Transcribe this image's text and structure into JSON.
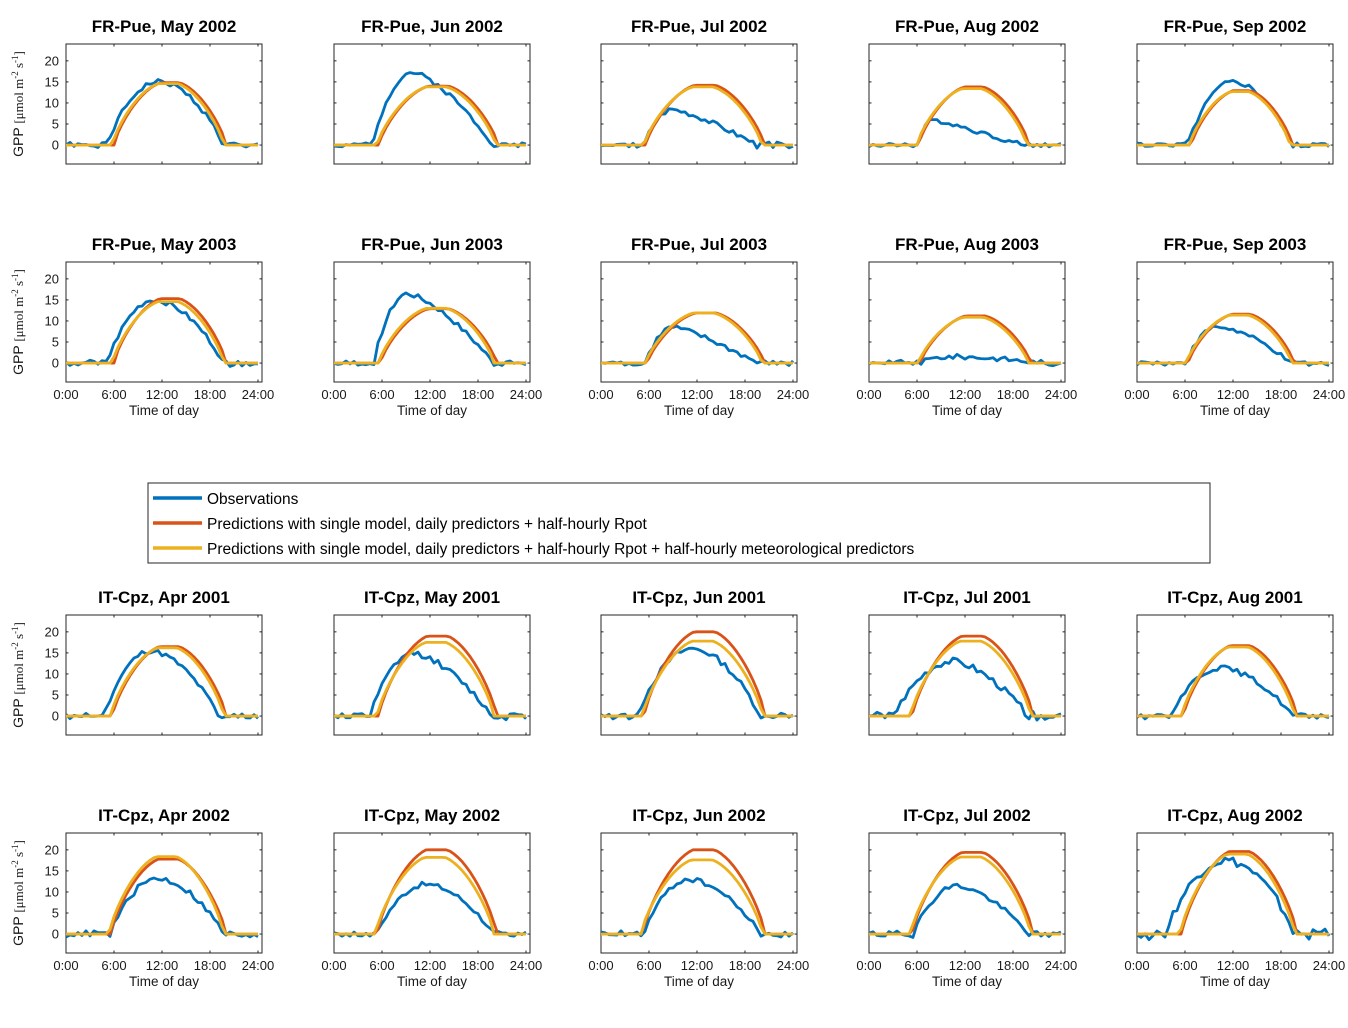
{
  "chart_data": {
    "type": "line",
    "x_ticks": [
      "0:00",
      "6:00",
      "12:00",
      "18:00",
      "24:00"
    ],
    "xlabel": "Time of day",
    "ylabel": "GPP [μmol m⁻² s⁻¹]",
    "ylabel_parts": {
      "main": "GPP ",
      "unit_start": "[μmol m",
      "exp1": "-2",
      "mid": " s",
      "exp2": "-1",
      "end": "]"
    },
    "y_ticks": [
      0,
      5,
      10,
      15,
      20
    ],
    "ylim": [
      -4.5,
      24
    ],
    "xlim": [
      0,
      24.5
    ],
    "colors": {
      "obs": "#0072BD",
      "pred1": "#D95319",
      "pred2": "#EDB120"
    },
    "legend": [
      {
        "key": "obs",
        "label": "Observations"
      },
      {
        "key": "pred1",
        "label": "Predictions with single model, daily predictors + half-hourly Rpot"
      },
      {
        "key": "pred2",
        "label": "Predictions with single model, daily predictors + half-hourly Rpot + half-hourly meteorological predictors"
      }
    ],
    "panels": [
      {
        "title": "FR-Pue, May 2002",
        "rise": 6.0,
        "set": 20.0,
        "pred1": 14.8,
        "pred2": 14.6,
        "obs": {
          "r": 5.2,
          "s": 19.6,
          "p": 15.0,
          "pk": 11.5,
          "asym": 0.0,
          "nz": 0.3,
          "amp": 0.6,
          "seed": 1
        }
      },
      {
        "title": "FR-Pue, Jun 2002",
        "rise": 5.6,
        "set": 20.5,
        "pred1": 14.0,
        "pred2": 13.8,
        "obs": {
          "r": 4.8,
          "s": 19.8,
          "p": 17.3,
          "pk": 9.8,
          "asym": 0.35,
          "nz": 0.3,
          "amp": 0.6,
          "seed": 2
        }
      },
      {
        "title": "FR-Pue, Jul 2002",
        "rise": 5.6,
        "set": 20.4,
        "pred1": 14.2,
        "pred2": 13.8,
        "obs": {
          "r": 5.4,
          "s": 19.5,
          "p": 8.5,
          "pk": 9.0,
          "asym": 0.5,
          "nz": 0.4,
          "amp": 0.6,
          "seed": 3
        }
      },
      {
        "title": "FR-Pue, Aug 2002",
        "rise": 6.2,
        "set": 20.0,
        "pred1": 13.8,
        "pred2": 13.4,
        "obs": {
          "r": 6.2,
          "s": 19.4,
          "p": 6.0,
          "pk": 8.0,
          "asym": 0.6,
          "nz": 0.3,
          "amp": 0.5,
          "seed": 4
        }
      },
      {
        "title": "FR-Pue, Sep 2002",
        "rise": 6.8,
        "set": 19.4,
        "pred1": 12.9,
        "pred2": 12.7,
        "obs": {
          "r": 6.4,
          "s": 19.2,
          "p": 15.0,
          "pk": 12.0,
          "asym": 0.0,
          "nz": 0.3,
          "amp": 0.6,
          "seed": 5
        }
      },
      {
        "title": "FR-Pue, May 2003",
        "rise": 6.0,
        "set": 20.0,
        "pred1": 15.3,
        "pred2": 14.6,
        "obs": {
          "r": 5.2,
          "s": 19.6,
          "p": 15.0,
          "pk": 11.0,
          "asym": 0.1,
          "nz": 0.4,
          "amp": 0.6,
          "seed": 6
        }
      },
      {
        "title": "FR-Pue, Jun 2003",
        "rise": 5.8,
        "set": 20.3,
        "pred1": 12.9,
        "pred2": 13.0,
        "obs": {
          "r": 5.0,
          "s": 19.8,
          "p": 16.5,
          "pk": 9.2,
          "asym": 0.35,
          "nz": 0.4,
          "amp": 0.6,
          "seed": 7
        }
      },
      {
        "title": "FR-Pue, Jul 2003",
        "rise": 5.8,
        "set": 20.4,
        "pred1": 11.9,
        "pred2": 11.9,
        "obs": {
          "r": 5.6,
          "s": 19.5,
          "p": 8.5,
          "pk": 9.0,
          "asym": 0.5,
          "nz": 0.4,
          "amp": 0.6,
          "seed": 8
        }
      },
      {
        "title": "FR-Pue, Aug 2003",
        "rise": 6.4,
        "set": 20.2,
        "pred1": 11.2,
        "pred2": 10.9,
        "obs": {
          "r": 6.5,
          "s": 21.0,
          "p": 1.5,
          "pk": 10.0,
          "asym": 0.0,
          "nz": 0.5,
          "amp": 0.6,
          "seed": 9
        }
      },
      {
        "title": "FR-Pue, Sep 2003",
        "rise": 6.4,
        "set": 19.6,
        "pred1": 11.6,
        "pred2": 11.4,
        "obs": {
          "r": 6.2,
          "s": 19.0,
          "p": 8.6,
          "pk": 10.0,
          "asym": 0.2,
          "nz": 0.3,
          "amp": 0.5,
          "seed": 10
        }
      },
      {
        "title": "IT-Cpz, Apr 2001",
        "rise": 5.8,
        "set": 20.0,
        "pred1": 16.5,
        "pred2": 16.2,
        "obs": {
          "r": 4.8,
          "s": 19.0,
          "p": 15.5,
          "pk": 10.6,
          "asym": 0.15,
          "nz": 0.5,
          "amp": 0.6,
          "seed": 11
        }
      },
      {
        "title": "IT-Cpz, May 2001",
        "rise": 5.6,
        "set": 20.3,
        "pred1": 19.0,
        "pred2": 17.5,
        "obs": {
          "r": 4.6,
          "s": 19.6,
          "p": 15.0,
          "pk": 10.0,
          "asym": 0.3,
          "nz": 0.5,
          "amp": 0.7,
          "seed": 12
        }
      },
      {
        "title": "IT-Cpz, Jun 2001",
        "rise": 5.4,
        "set": 20.5,
        "pred1": 20.0,
        "pred2": 17.8,
        "obs": {
          "r": 4.6,
          "s": 19.8,
          "p": 16.0,
          "pk": 11.5,
          "asym": 0.1,
          "nz": 0.5,
          "amp": 0.7,
          "seed": 13
        }
      },
      {
        "title": "IT-Cpz, Jul 2001",
        "rise": 5.4,
        "set": 20.5,
        "pred1": 19.0,
        "pred2": 17.8,
        "obs": {
          "r": 3.2,
          "s": 19.8,
          "p": 13.0,
          "pk": 10.5,
          "asym": 0.3,
          "nz": 0.6,
          "amp": 0.8,
          "seed": 14
        }
      },
      {
        "title": "IT-Cpz, Aug 2001",
        "rise": 5.8,
        "set": 20.0,
        "pred1": 16.7,
        "pred2": 16.4,
        "obs": {
          "r": 4.2,
          "s": 19.4,
          "p": 11.5,
          "pk": 10.5,
          "asym": 0.2,
          "nz": 0.5,
          "amp": 0.6,
          "seed": 15
        }
      },
      {
        "title": "IT-Cpz, Apr 2002",
        "rise": 5.6,
        "set": 20.0,
        "pred1": 17.8,
        "pred2": 18.4,
        "obs": {
          "r": 5.6,
          "s": 19.6,
          "p": 13.2,
          "pk": 11.5,
          "asym": 0.1,
          "nz": 0.5,
          "amp": 0.7,
          "seed": 16
        }
      },
      {
        "title": "IT-Cpz, May 2002",
        "rise": 5.4,
        "set": 20.3,
        "pred1": 20.0,
        "pred2": 18.2,
        "obs": {
          "r": 5.4,
          "s": 19.8,
          "p": 11.8,
          "pk": 11.5,
          "asym": 0.1,
          "nz": 0.5,
          "amp": 0.6,
          "seed": 17
        }
      },
      {
        "title": "IT-Cpz, Jun 2002",
        "rise": 5.2,
        "set": 20.5,
        "pred1": 20.0,
        "pred2": 17.6,
        "obs": {
          "r": 5.4,
          "s": 19.8,
          "p": 13.0,
          "pk": 11.0,
          "asym": 0.15,
          "nz": 0.5,
          "amp": 0.6,
          "seed": 18
        }
      },
      {
        "title": "IT-Cpz, Jul 2002",
        "rise": 5.4,
        "set": 20.5,
        "pred1": 19.4,
        "pred2": 18.3,
        "obs": {
          "r": 5.6,
          "s": 19.8,
          "p": 11.5,
          "pk": 11.0,
          "asym": 0.25,
          "nz": 0.5,
          "amp": 0.6,
          "seed": 19
        }
      },
      {
        "title": "IT-Cpz, Aug 2002",
        "rise": 5.6,
        "set": 20.0,
        "pred1": 19.6,
        "pred2": 19.0,
        "obs": {
          "r": 3.6,
          "s": 19.6,
          "p": 17.5,
          "pk": 11.0,
          "asym": 0.0,
          "nz": 0.9,
          "amp": 1.1,
          "seed": 20
        }
      }
    ]
  }
}
